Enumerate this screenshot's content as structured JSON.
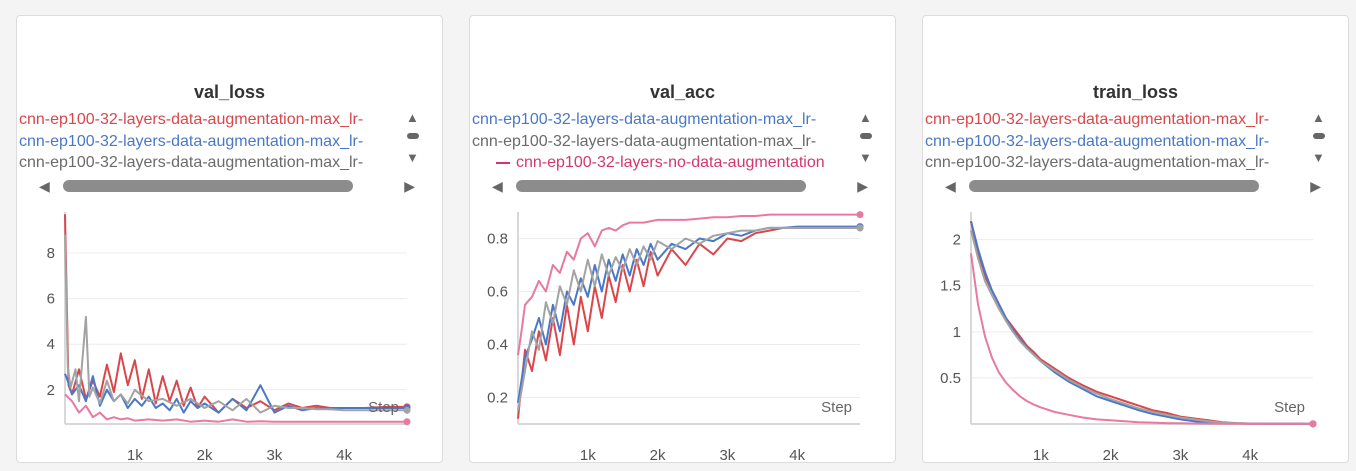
{
  "panels": [
    {
      "title": "val_loss",
      "legend": [
        {
          "text": "cnn-ep100-32-layers-data-augmentation-max_lr-",
          "color": "#d9474b",
          "show_dash": false
        },
        {
          "text": "cnn-ep100-32-layers-data-augmentation-max_lr-",
          "color": "#4a78c9",
          "show_dash": false
        },
        {
          "text": "cnn-ep100-32-layers-data-augmentation-max_lr-",
          "color": "#6b6b6b",
          "show_dash": false
        }
      ],
      "x_axis_label": "Step"
    },
    {
      "title": "val_acc",
      "legend": [
        {
          "text": "cnn-ep100-32-layers-data-augmentation-max_lr-",
          "color": "#4a78c9",
          "show_dash": false
        },
        {
          "text": "cnn-ep100-32-layers-data-augmentation-max_lr-",
          "color": "#6b6b6b",
          "show_dash": false
        },
        {
          "text": "cnn-ep100-32-layers-no-data-augmentation",
          "color": "#d4376f",
          "show_dash": true
        }
      ],
      "x_axis_label": "Step"
    },
    {
      "title": "train_loss",
      "legend": [
        {
          "text": "cnn-ep100-32-layers-data-augmentation-max_lr-",
          "color": "#d9474b",
          "show_dash": false
        },
        {
          "text": "cnn-ep100-32-layers-data-augmentation-max_lr-",
          "color": "#4a78c9",
          "show_dash": false
        },
        {
          "text": "cnn-ep100-32-layers-data-augmentation-max_lr-",
          "color": "#6b6b6b",
          "show_dash": false
        }
      ],
      "x_axis_label": "Step"
    }
  ],
  "colors": {
    "red": "#d9474b",
    "blue": "#4a78c9",
    "gray": "#a3a3a3",
    "pink": "#e87aa0",
    "grid": "#ececec",
    "axis": "#d8d8d8"
  },
  "icons": {
    "scroll_up": "triangle-up-icon",
    "scroll_mid": "pill-icon",
    "scroll_down": "triangle-down-icon",
    "scroll_left": "triangle-left-icon",
    "scroll_right": "triangle-right-icon"
  },
  "chart_data": [
    {
      "type": "line",
      "title": "val_loss",
      "xlabel": "Step",
      "ylabel": "",
      "xlim": [
        0,
        4900
      ],
      "ylim": [
        0.5,
        9.8
      ],
      "xticks": [
        1000,
        2000,
        3000,
        4000
      ],
      "xtick_labels": [
        "1k",
        "2k",
        "3k",
        "4k"
      ],
      "yticks": [
        2,
        4,
        6,
        8
      ],
      "ytick_labels": [
        "2",
        "4",
        "6",
        "8"
      ],
      "grid": true,
      "series": [
        {
          "color": "#d9474b",
          "x": [
            0,
            50,
            100,
            200,
            300,
            400,
            500,
            600,
            700,
            800,
            900,
            1000,
            1100,
            1200,
            1300,
            1400,
            1500,
            1600,
            1700,
            1800,
            1900,
            2000,
            2200,
            2400,
            2600,
            2800,
            3000,
            3200,
            3400,
            3600,
            3800,
            4000,
            4300,
            4600,
            4900
          ],
          "y": [
            9.7,
            2.2,
            1.8,
            2.9,
            1.6,
            2.4,
            1.7,
            3.1,
            1.9,
            3.6,
            2.2,
            3.3,
            1.6,
            2.9,
            1.4,
            2.6,
            1.5,
            2.4,
            1.3,
            2.1,
            1.2,
            1.7,
            1.0,
            1.6,
            1.2,
            1.5,
            1.1,
            1.4,
            1.2,
            1.3,
            1.2,
            1.2,
            1.2,
            1.25,
            1.25
          ]
        },
        {
          "color": "#4a78c9",
          "x": [
            0,
            50,
            100,
            200,
            300,
            400,
            500,
            600,
            700,
            800,
            900,
            1000,
            1100,
            1200,
            1300,
            1400,
            1500,
            1600,
            1700,
            1800,
            1900,
            2000,
            2200,
            2400,
            2600,
            2800,
            3000,
            3200,
            3400,
            3600,
            3800,
            4000,
            4300,
            4600,
            4900
          ],
          "y": [
            2.7,
            2.3,
            1.8,
            2.2,
            1.5,
            2.6,
            1.3,
            2.0,
            1.5,
            1.8,
            1.2,
            1.6,
            1.3,
            1.7,
            1.2,
            1.4,
            1.1,
            1.6,
            1.0,
            1.5,
            1.2,
            1.4,
            1.0,
            1.6,
            1.1,
            2.2,
            1.0,
            1.3,
            1.1,
            1.2,
            1.15,
            1.2,
            1.2,
            1.2,
            1.2
          ]
        },
        {
          "color": "#a3a3a3",
          "x": [
            0,
            40,
            80,
            150,
            200,
            300,
            350,
            400,
            500,
            600,
            700,
            800,
            900,
            1000,
            1200,
            1400,
            1600,
            1800,
            2000,
            2200,
            2400,
            2600,
            2800,
            3000,
            3200,
            3400,
            3600,
            3800,
            4000,
            4300,
            4600,
            4900
          ],
          "y": [
            8.8,
            3.0,
            2.1,
            2.9,
            1.5,
            5.2,
            1.7,
            2.1,
            1.4,
            2.4,
            1.5,
            1.8,
            1.4,
            2.0,
            1.5,
            1.6,
            1.3,
            1.6,
            1.2,
            1.5,
            1.1,
            1.6,
            1.0,
            1.3,
            1.2,
            1.2,
            1.15,
            1.15,
            1.1,
            1.1,
            1.1,
            1.1
          ]
        },
        {
          "color": "#e87aa0",
          "x": [
            0,
            100,
            200,
            300,
            400,
            500,
            600,
            700,
            800,
            900,
            1000,
            1200,
            1400,
            1600,
            1800,
            2000,
            2200,
            2400,
            2600,
            2800,
            3000,
            3200,
            3400,
            3600,
            3800,
            4000,
            4300,
            4600,
            4900
          ],
          "y": [
            1.8,
            1.5,
            1.0,
            1.3,
            0.8,
            1.0,
            0.7,
            0.8,
            0.7,
            0.75,
            0.65,
            0.7,
            0.65,
            0.7,
            0.6,
            0.65,
            0.6,
            0.7,
            0.6,
            0.62,
            0.6,
            0.6,
            0.6,
            0.6,
            0.6,
            0.6,
            0.6,
            0.6,
            0.6
          ]
        }
      ]
    },
    {
      "type": "line",
      "title": "val_acc",
      "xlabel": "Step",
      "ylabel": "",
      "xlim": [
        0,
        4900
      ],
      "ylim": [
        0.1,
        0.9
      ],
      "xticks": [
        1000,
        2000,
        3000,
        4000
      ],
      "xtick_labels": [
        "1k",
        "2k",
        "3k",
        "4k"
      ],
      "yticks": [
        0.2,
        0.4,
        0.6,
        0.8
      ],
      "ytick_labels": [
        "0.2",
        "0.4",
        "0.6",
        "0.8"
      ],
      "grid": true,
      "series": [
        {
          "color": "#d9474b",
          "x": [
            0,
            100,
            200,
            300,
            400,
            500,
            600,
            700,
            800,
            900,
            1000,
            1100,
            1200,
            1300,
            1400,
            1500,
            1600,
            1700,
            1800,
            1900,
            2000,
            2200,
            2400,
            2600,
            2800,
            3000,
            3200,
            3400,
            3600,
            3800,
            4000,
            4300,
            4600,
            4900
          ],
          "y": [
            0.12,
            0.38,
            0.3,
            0.45,
            0.34,
            0.5,
            0.36,
            0.55,
            0.4,
            0.58,
            0.45,
            0.62,
            0.5,
            0.66,
            0.56,
            0.7,
            0.6,
            0.72,
            0.62,
            0.75,
            0.66,
            0.76,
            0.7,
            0.78,
            0.74,
            0.8,
            0.79,
            0.82,
            0.83,
            0.84,
            0.84,
            0.84,
            0.84,
            0.84
          ]
        },
        {
          "color": "#4a78c9",
          "x": [
            0,
            100,
            200,
            300,
            400,
            500,
            600,
            700,
            800,
            900,
            1000,
            1100,
            1200,
            1300,
            1400,
            1500,
            1600,
            1700,
            1800,
            1900,
            2000,
            2200,
            2400,
            2600,
            2800,
            3000,
            3200,
            3400,
            3600,
            3800,
            4000,
            4300,
            4600,
            4900
          ],
          "y": [
            0.18,
            0.35,
            0.42,
            0.5,
            0.4,
            0.55,
            0.45,
            0.6,
            0.55,
            0.65,
            0.58,
            0.7,
            0.6,
            0.72,
            0.64,
            0.74,
            0.66,
            0.76,
            0.7,
            0.78,
            0.72,
            0.78,
            0.76,
            0.8,
            0.79,
            0.82,
            0.81,
            0.83,
            0.84,
            0.84,
            0.845,
            0.845,
            0.845,
            0.845
          ]
        },
        {
          "color": "#a3a3a3",
          "x": [
            0,
            100,
            200,
            300,
            400,
            500,
            600,
            700,
            800,
            900,
            1000,
            1100,
            1200,
            1300,
            1400,
            1500,
            1600,
            1700,
            1800,
            1900,
            2000,
            2200,
            2400,
            2600,
            2800,
            3000,
            3200,
            3400,
            3600,
            3800,
            4000,
            4300,
            4600,
            4900
          ],
          "y": [
            0.15,
            0.3,
            0.45,
            0.38,
            0.56,
            0.48,
            0.62,
            0.55,
            0.68,
            0.6,
            0.72,
            0.62,
            0.74,
            0.66,
            0.73,
            0.68,
            0.76,
            0.7,
            0.77,
            0.72,
            0.79,
            0.76,
            0.8,
            0.78,
            0.81,
            0.82,
            0.83,
            0.83,
            0.84,
            0.84,
            0.84,
            0.84,
            0.84,
            0.84
          ]
        },
        {
          "color": "#e87aa0",
          "x": [
            0,
            50,
            100,
            200,
            300,
            400,
            500,
            600,
            700,
            800,
            900,
            1000,
            1100,
            1200,
            1300,
            1400,
            1500,
            1600,
            1800,
            2000,
            2200,
            2400,
            2600,
            2800,
            3000,
            3200,
            3400,
            3600,
            3800,
            4000,
            4300,
            4600,
            4900
          ],
          "y": [
            0.36,
            0.45,
            0.55,
            0.58,
            0.64,
            0.6,
            0.7,
            0.67,
            0.75,
            0.72,
            0.8,
            0.82,
            0.77,
            0.83,
            0.84,
            0.83,
            0.85,
            0.86,
            0.86,
            0.87,
            0.87,
            0.87,
            0.875,
            0.88,
            0.88,
            0.885,
            0.885,
            0.89,
            0.89,
            0.89,
            0.89,
            0.89,
            0.89
          ]
        }
      ]
    },
    {
      "type": "line",
      "title": "train_loss",
      "xlabel": "Step",
      "ylabel": "",
      "xlim": [
        0,
        4900
      ],
      "ylim": [
        0,
        2.3
      ],
      "xticks": [
        1000,
        2000,
        3000,
        4000
      ],
      "xtick_labels": [
        "1k",
        "2k",
        "3k",
        "4k"
      ],
      "yticks": [
        0.5,
        1,
        1.5,
        2
      ],
      "ytick_labels": [
        "0.5",
        "1",
        "1.5",
        "2"
      ],
      "grid": true,
      "series": [
        {
          "color": "#d9474b",
          "x": [
            0,
            100,
            200,
            300,
            400,
            500,
            600,
            700,
            800,
            900,
            1000,
            1200,
            1400,
            1600,
            1800,
            2000,
            2200,
            2400,
            2600,
            2800,
            3000,
            3200,
            3400,
            3600,
            3800,
            4000,
            4300,
            4600,
            4900
          ],
          "y": [
            2.2,
            1.85,
            1.6,
            1.45,
            1.3,
            1.15,
            1.05,
            0.95,
            0.85,
            0.78,
            0.7,
            0.6,
            0.5,
            0.42,
            0.35,
            0.3,
            0.25,
            0.2,
            0.15,
            0.12,
            0.08,
            0.06,
            0.04,
            0.02,
            0.01,
            0.005,
            0.003,
            0.002,
            0.002
          ]
        },
        {
          "color": "#4a78c9",
          "x": [
            0,
            100,
            200,
            300,
            400,
            500,
            600,
            700,
            800,
            900,
            1000,
            1200,
            1400,
            1600,
            1800,
            2000,
            2200,
            2400,
            2600,
            2800,
            3000,
            3200,
            3400,
            3600,
            3800,
            4000,
            4300,
            4600,
            4900
          ],
          "y": [
            2.2,
            1.9,
            1.65,
            1.45,
            1.3,
            1.15,
            1.02,
            0.92,
            0.83,
            0.75,
            0.68,
            0.56,
            0.46,
            0.38,
            0.3,
            0.25,
            0.2,
            0.15,
            0.11,
            0.08,
            0.05,
            0.03,
            0.02,
            0.01,
            0.005,
            0.003,
            0.002,
            0.002,
            0.002
          ]
        },
        {
          "color": "#a3a3a3",
          "x": [
            0,
            100,
            200,
            300,
            400,
            500,
            600,
            700,
            800,
            900,
            1000,
            1200,
            1400,
            1600,
            1800,
            2000,
            2200,
            2400,
            2600,
            2800,
            3000,
            3200,
            3400,
            3600,
            3800,
            4000,
            4300,
            4600,
            4900
          ],
          "y": [
            2.1,
            1.8,
            1.55,
            1.4,
            1.25,
            1.12,
            1.0,
            0.9,
            0.82,
            0.75,
            0.68,
            0.58,
            0.48,
            0.4,
            0.33,
            0.27,
            0.22,
            0.17,
            0.13,
            0.1,
            0.07,
            0.05,
            0.03,
            0.015,
            0.008,
            0.004,
            0.003,
            0.002,
            0.002
          ]
        },
        {
          "color": "#e87aa0",
          "x": [
            0,
            100,
            200,
            300,
            400,
            500,
            600,
            700,
            800,
            900,
            1000,
            1200,
            1400,
            1600,
            1800,
            2000,
            2200,
            2400,
            2600,
            2800,
            3000,
            3200,
            3400,
            3600,
            3800,
            4000,
            4300,
            4600,
            4900
          ],
          "y": [
            1.85,
            1.3,
            0.95,
            0.72,
            0.56,
            0.45,
            0.37,
            0.3,
            0.25,
            0.21,
            0.18,
            0.13,
            0.1,
            0.07,
            0.05,
            0.04,
            0.03,
            0.02,
            0.015,
            0.01,
            0.008,
            0.005,
            0.004,
            0.003,
            0.002,
            0.002,
            0.002,
            0.002,
            0.002
          ]
        }
      ]
    }
  ]
}
